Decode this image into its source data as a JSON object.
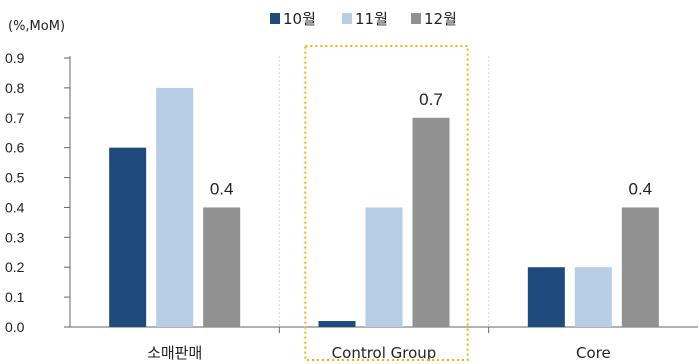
{
  "chart_data": {
    "type": "bar",
    "unit_label": "(%,MoM)",
    "categories": [
      "소매판매",
      "Control Group",
      "Core"
    ],
    "series": [
      {
        "name": "10월",
        "values": [
          0.6,
          0.02,
          0.2
        ],
        "color": "#1f4a7e"
      },
      {
        "name": "11월",
        "values": [
          0.8,
          0.4,
          0.2
        ],
        "color": "#b8cde6"
      },
      {
        "name": "12월",
        "values": [
          0.4,
          0.7,
          0.4
        ],
        "color": "#919191"
      }
    ],
    "data_labels": [
      {
        "category": "소매판매",
        "series": "12월",
        "text": "0.4"
      },
      {
        "category": "Control Group",
        "series": "12월",
        "text": "0.7"
      },
      {
        "category": "Core",
        "series": "12월",
        "text": "0.4"
      }
    ],
    "ylim": [
      0,
      0.9
    ],
    "yticks": [
      "0.0",
      "0.1",
      "0.2",
      "0.3",
      "0.4",
      "0.5",
      "0.6",
      "0.7",
      "0.8",
      "0.9"
    ],
    "legend_position": "top-center",
    "highlight": {
      "category": "Control Group",
      "style": "dotted",
      "color": "#f0b400"
    },
    "grid": false
  }
}
